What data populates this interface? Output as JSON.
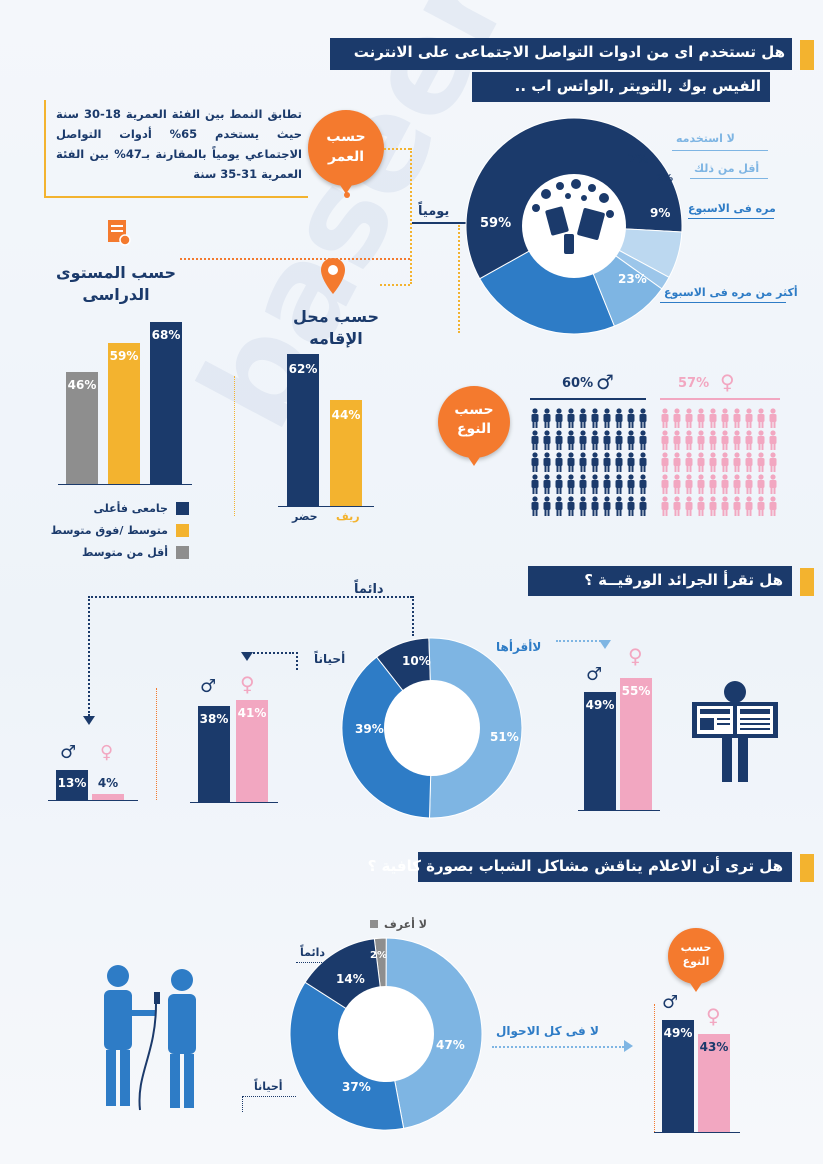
{
  "watermark": "baseera",
  "colors": {
    "navy": "#1b3a6b",
    "blue": "#2e7cc6",
    "lightblue": "#7eb5e3",
    "orange": "#f47a2e",
    "yellow": "#f3b32f",
    "pink": "#f2a7c1",
    "gray": "#8e8e8e"
  },
  "section1": {
    "question_line1": "هل تستخدم اى من ادوات التواصل الاجتماعى على الانترنت",
    "question_line2": "الفيس بوك ,التويتر ,الواتس اب ..",
    "age_note": "تطابق النمط بين الفئة العمرية 18-30 سنة حيث يستخدم 65% أدوات التواصل الاجتماعي يومياً بالمقارنة بـ47% بين الفئة العمرية 31-35 سنة",
    "bubble_age": "حسب العمر",
    "bubble_education": "حسب المستوى الدراسى",
    "bubble_residence": "حسب محل الإقامه",
    "bubble_gender": "حسب النوع",
    "daily_label": "يومياً"
  },
  "chart_data": [
    {
      "type": "pie",
      "title": "",
      "slices": [
        {
          "label": "يومياً",
          "value": 59
        },
        {
          "label": "أكثر من مره فى الاسبوع",
          "value": 23
        },
        {
          "label": "مره فى الاسبوع",
          "value": 9
        },
        {
          "label": "أقل من ذلك",
          "value": 2
        },
        {
          "label": "لا استخدمه",
          "value": 7
        }
      ]
    },
    {
      "type": "bar",
      "title": "حسب المستوى الدراسى",
      "categories": [
        "أقل من متوسط",
        "متوسط /فوق متوسط",
        "جامعى فأعلى"
      ],
      "values": [
        46,
        59,
        68
      ]
    },
    {
      "type": "bar",
      "title": "حسب محل الإقامه",
      "categories": [
        "حضر",
        "ريف"
      ],
      "values": [
        62,
        44
      ]
    },
    {
      "type": "bar",
      "title": "حسب النوع",
      "categories": [
        "ذكور",
        "إناث"
      ],
      "values": [
        60,
        57
      ]
    },
    {
      "type": "pie",
      "title": "هل تقرأ الجرائد الورقية ؟",
      "slices": [
        {
          "label": "لاأقرأها",
          "value": 51
        },
        {
          "label": "أحياناً",
          "value": 39
        },
        {
          "label": "دائماً",
          "value": 10
        }
      ],
      "by_gender": {
        "دائماً": {
          "male": 13,
          "female": 4
        },
        "أحياناً": {
          "male": 38,
          "female": 41
        },
        "لاأقرأها": {
          "male": 49,
          "female": 55
        }
      }
    },
    {
      "type": "pie",
      "title": "هل ترى أن الاعلام يناقش مشاكل الشباب بصورة كافية ؟",
      "slices": [
        {
          "label": "لا فى كل الاحوال",
          "value": 47
        },
        {
          "label": "أحياناً",
          "value": 37
        },
        {
          "label": "دائماً",
          "value": 14
        },
        {
          "label": "لا أعرف",
          "value": 2
        }
      ],
      "by_gender": {
        "male": 49,
        "female": 43
      }
    }
  ],
  "labels": {
    "pie1_labels": [
      "لا استخدمه",
      "أقل من ذلك",
      "مره فى الاسبوع",
      "أكثر من مره فى الاسبوع"
    ],
    "pie1_values": [
      "7%",
      "2%",
      "9%",
      "23%",
      "59%"
    ],
    "edu_values": [
      "46%",
      "59%",
      "68%"
    ],
    "edu_legend": [
      "جامعى فأعلى",
      "متوسط /فوق متوسط",
      "أقل من متوسط"
    ],
    "res_values": [
      "62%",
      "44%"
    ],
    "res_cats": [
      "حضر",
      "ريف"
    ],
    "gender_values": [
      "60%",
      "57%"
    ],
    "news_question": "هل تقرأ الجرائد الورقيــة ؟",
    "news_always": "دائماً",
    "news_sometimes": "أحياناً",
    "news_never": "لاأقرأها",
    "news_pie_values": [
      "10%",
      "39%",
      "51%"
    ],
    "news_always_vals": [
      "13%",
      "4%"
    ],
    "news_sometimes_vals": [
      "38%",
      "41%"
    ],
    "news_never_vals": [
      "49%",
      "55%"
    ],
    "media_question": "هل ترى أن الاعلام يناقش مشاكل الشباب بصورة كافية ؟",
    "media_dontknow": "لا أعرف",
    "media_always": "دائماً",
    "media_sometimes": "أحياناً",
    "media_never": "لا فى كل الاحوال",
    "media_pie_values": [
      "2%",
      "14%",
      "37%",
      "47%"
    ],
    "media_gender_vals": [
      "49%",
      "43%"
    ],
    "bubble_gender2": "حسب النوع"
  }
}
